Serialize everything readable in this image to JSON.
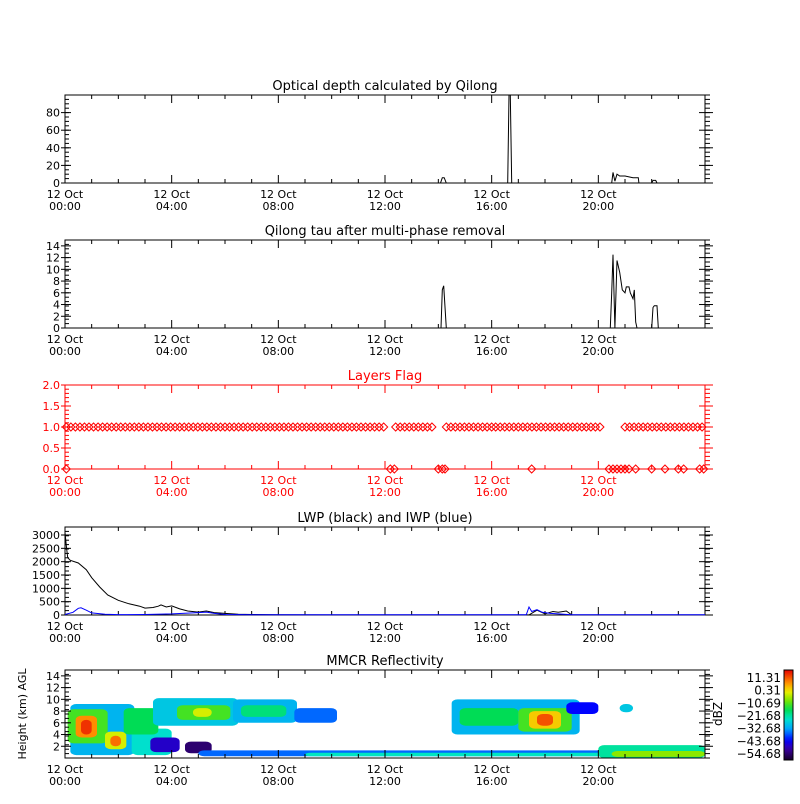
{
  "x_tick_labels": [
    {
      "line1": "12 Oct",
      "line2": "00:00"
    },
    {
      "line1": "12 Oct",
      "line2": "04:00"
    },
    {
      "line1": "12 Oct",
      "line2": "08:00"
    },
    {
      "line1": "12 Oct",
      "line2": "12:00"
    },
    {
      "line1": "12 Oct",
      "line2": "16:00"
    },
    {
      "line1": "12 Oct",
      "line2": "20:00"
    }
  ],
  "colors": {
    "axis": "#000000",
    "flag": "#ff0000",
    "iwp": "#0000ff"
  },
  "chart_data": [
    {
      "type": "line",
      "title": "Optical depth calculated by Qilong",
      "xlabel": "",
      "ylabel": "",
      "xlim": [
        0,
        24
      ],
      "ylim": [
        0,
        100
      ],
      "yticks": [
        "0",
        "20",
        "40",
        "60",
        "80"
      ],
      "series": [
        {
          "x": [
            0,
            14.0,
            14.08,
            14.15,
            14.22,
            14.3,
            16.6,
            16.65,
            16.7,
            16.75,
            20.5,
            20.55,
            20.62,
            20.7,
            20.8,
            21.0,
            21.3,
            21.5,
            21.52,
            22.0,
            22.05,
            22.15,
            22.2,
            24
          ],
          "y": [
            0,
            0,
            0,
            6,
            6,
            0,
            0,
            100,
            100,
            0,
            0,
            12,
            2,
            10,
            8,
            8,
            6,
            6,
            0,
            0,
            3,
            3,
            0,
            0
          ],
          "color": "#000000"
        }
      ]
    },
    {
      "type": "line",
      "title": "Qilong tau after multi-phase removal",
      "xlabel": "",
      "ylabel": "",
      "xlim": [
        0,
        24
      ],
      "ylim": [
        0,
        15
      ],
      "yticks": [
        "0",
        "2",
        "4",
        "6",
        "8",
        "10",
        "12",
        "14"
      ],
      "series": [
        {
          "x": [
            0,
            14.0,
            14.1,
            14.15,
            14.2,
            14.3,
            20.45,
            20.5,
            20.55,
            20.62,
            20.7,
            20.8,
            20.9,
            21.0,
            21.05,
            21.15,
            21.2,
            21.3,
            21.35,
            21.4,
            21.45,
            22.0,
            22.05,
            22.1,
            22.2,
            22.25,
            24
          ],
          "y": [
            0,
            0,
            0,
            6.5,
            7.2,
            0,
            0,
            6,
            12.5,
            0,
            11.5,
            9.5,
            6.5,
            6,
            7,
            7,
            6,
            5,
            6.5,
            1,
            0,
            0,
            3.5,
            3.8,
            3.8,
            0,
            0
          ],
          "color": "#000000"
        }
      ]
    },
    {
      "type": "scatter",
      "title": "Layers Flag",
      "xlabel": "",
      "ylabel": "",
      "xlim": [
        0,
        24
      ],
      "ylim": [
        0,
        2
      ],
      "yticks": [
        "0.0",
        "0.5",
        "1.0",
        "1.5",
        "2.0"
      ],
      "marker": "diamond",
      "series": [
        {
          "name": "",
          "x_start": 0.05,
          "x_end": 12.05,
          "step": 0.17,
          "y": 1.0
        },
        {
          "name": "",
          "x_start": 12.4,
          "x_end": 13.9,
          "step": 0.17,
          "y": 1.0
        },
        {
          "name": "",
          "x_start": 14.3,
          "x_end": 16.0,
          "step": 0.17,
          "y": 1.0
        },
        {
          "name": "",
          "x_start": 16.15,
          "x_end": 20.2,
          "step": 0.17,
          "y": 1.0
        },
        {
          "name": "",
          "x_start": 21.0,
          "x_end": 23.95,
          "step": 0.17,
          "y": 1.0
        },
        {
          "name": "",
          "x_list": [
            0.05,
            12.2,
            12.35,
            14.0,
            14.15,
            14.25,
            17.5,
            20.4,
            20.55,
            20.7,
            20.85,
            21.0,
            21.15,
            21.4,
            22.0,
            22.5,
            23.0,
            23.2,
            23.8,
            23.95
          ],
          "y": 0.0
        }
      ]
    },
    {
      "type": "line",
      "title": "LWP (black) and IWP (blue)",
      "xlabel": "",
      "ylabel": "",
      "xlim": [
        0,
        24
      ],
      "ylim": [
        0,
        3300
      ],
      "yticks": [
        "0",
        "500",
        "1000",
        "1500",
        "2000",
        "2500",
        "3000"
      ],
      "series": [
        {
          "x": [
            0,
            0.05,
            0.1,
            0.2,
            0.5,
            0.8,
            1.0,
            1.3,
            1.6,
            2.0,
            2.4,
            2.8,
            3.0,
            3.3,
            3.5,
            3.6,
            3.8,
            4.0,
            4.3,
            4.6,
            5.0,
            5.3,
            5.6,
            6.0,
            6.5,
            7.0,
            8.0,
            10.0,
            12.0,
            14.0,
            17.4,
            17.7,
            18.0,
            18.3,
            18.5,
            18.8,
            19.0,
            24
          ],
          "y": [
            3100,
            2600,
            2150,
            2050,
            1950,
            1700,
            1400,
            1050,
            750,
            550,
            420,
            330,
            260,
            280,
            330,
            380,
            300,
            340,
            230,
            150,
            110,
            150,
            90,
            60,
            30,
            20,
            10,
            5,
            5,
            5,
            5,
            180,
            40,
            130,
            100,
            150,
            5,
            5
          ],
          "color": "#000000"
        },
        {
          "x": [
            0,
            0.3,
            0.5,
            0.6,
            0.8,
            1.0,
            1.5,
            2.0,
            3.0,
            4.0,
            5.0,
            5.3,
            5.6,
            6.0,
            7.0,
            12.0,
            17.3,
            17.4,
            17.5,
            17.7,
            17.9,
            18.2,
            18.5,
            19.0,
            24
          ],
          "y": [
            20,
            100,
            250,
            270,
            180,
            80,
            30,
            15,
            20,
            40,
            90,
            110,
            60,
            20,
            10,
            10,
            10,
            300,
            130,
            200,
            100,
            60,
            40,
            10,
            10
          ],
          "color": "#0000ff"
        }
      ]
    },
    {
      "type": "heatmap",
      "title": "MMCR Reflectivity",
      "xlabel": "",
      "ylabel": "Height (km) AGL",
      "xlim": [
        0,
        24
      ],
      "ylim": [
        0,
        15
      ],
      "yticks": [
        "2",
        "4",
        "6",
        "8",
        "10",
        "12",
        "14"
      ],
      "colorbar": {
        "label": "dBZ",
        "ticks": [
          "11.31",
          "0.31",
          "−10.69",
          "−21.68",
          "−32.68",
          "−43.68",
          "−54.68"
        ],
        "range": [
          -54.68,
          11.31
        ]
      },
      "cells": [
        {
          "x0": 0.2,
          "x1": 2.6,
          "y0": 0.5,
          "y1": 9.2,
          "v": -30
        },
        {
          "x0": 0.1,
          "x1": 1.6,
          "y0": 2.5,
          "y1": 8.3,
          "v": -14
        },
        {
          "x0": 0.4,
          "x1": 1.2,
          "y0": 3.5,
          "y1": 7.2,
          "v": 2
        },
        {
          "x0": 0.6,
          "x1": 1.0,
          "y0": 4.0,
          "y1": 6.5,
          "v": 8
        },
        {
          "x0": 1.5,
          "x1": 2.3,
          "y0": 1.5,
          "y1": 4.5,
          "v": -6
        },
        {
          "x0": 1.7,
          "x1": 2.1,
          "y0": 2.0,
          "y1": 3.8,
          "v": 4
        },
        {
          "x0": 2.5,
          "x1": 4.0,
          "y0": 0.5,
          "y1": 5.0,
          "v": -25
        },
        {
          "x0": 2.2,
          "x1": 3.5,
          "y0": 4.0,
          "y1": 8.5,
          "v": -18
        },
        {
          "x0": 3.3,
          "x1": 6.5,
          "y0": 5.5,
          "y1": 10.2,
          "v": -28
        },
        {
          "x0": 4.2,
          "x1": 6.2,
          "y0": 6.5,
          "y1": 9.0,
          "v": -14
        },
        {
          "x0": 4.8,
          "x1": 5.5,
          "y0": 7.0,
          "y1": 8.5,
          "v": -6
        },
        {
          "x0": 6.3,
          "x1": 8.7,
          "y0": 6.0,
          "y1": 10.0,
          "v": -30
        },
        {
          "x0": 6.6,
          "x1": 8.3,
          "y0": 7.0,
          "y1": 9.0,
          "v": -20
        },
        {
          "x0": 8.6,
          "x1": 10.2,
          "y0": 6.0,
          "y1": 8.5,
          "v": -35
        },
        {
          "x0": 3.2,
          "x1": 4.3,
          "y0": 1.0,
          "y1": 3.5,
          "v": -44
        },
        {
          "x0": 4.5,
          "x1": 5.5,
          "y0": 0.8,
          "y1": 2.8,
          "v": -50
        },
        {
          "x0": 5.0,
          "x1": 24.0,
          "y0": 0.3,
          "y1": 1.3,
          "v": -35
        },
        {
          "x0": 9.0,
          "x1": 24.0,
          "y0": 0.3,
          "y1": 0.9,
          "v": -24
        },
        {
          "x0": 20.0,
          "x1": 24.0,
          "y0": 0.0,
          "y1": 2.2,
          "v": -22
        },
        {
          "x0": 20.5,
          "x1": 24.0,
          "y0": 0.2,
          "y1": 1.2,
          "v": -10
        },
        {
          "x0": 14.5,
          "x1": 19.3,
          "y0": 4.0,
          "y1": 10.0,
          "v": -30
        },
        {
          "x0": 14.8,
          "x1": 17.0,
          "y0": 5.5,
          "y1": 8.5,
          "v": -18
        },
        {
          "x0": 17.0,
          "x1": 19.0,
          "y0": 4.5,
          "y1": 8.5,
          "v": -14
        },
        {
          "x0": 17.4,
          "x1": 18.6,
          "y0": 5.0,
          "y1": 8.0,
          "v": -2
        },
        {
          "x0": 17.7,
          "x1": 18.3,
          "y0": 5.5,
          "y1": 7.5,
          "v": 6
        },
        {
          "x0": 18.8,
          "x1": 20.0,
          "y0": 7.5,
          "y1": 9.5,
          "v": -40
        },
        {
          "x0": 20.8,
          "x1": 21.3,
          "y0": 7.8,
          "y1": 9.2,
          "v": -28
        }
      ]
    }
  ]
}
